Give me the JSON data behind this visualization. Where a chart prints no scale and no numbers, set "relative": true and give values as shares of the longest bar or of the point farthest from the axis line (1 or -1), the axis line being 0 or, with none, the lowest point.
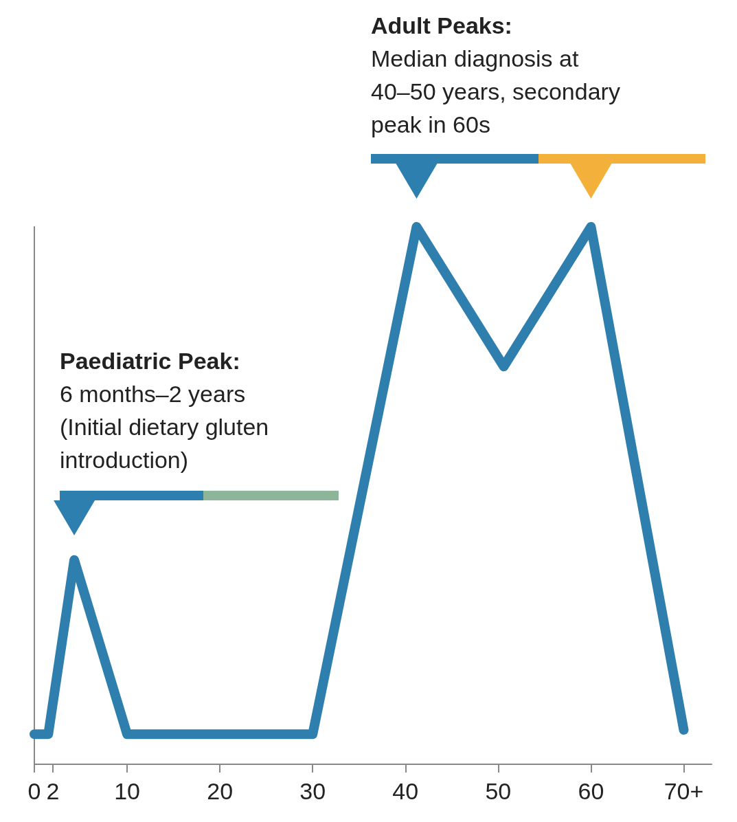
{
  "chart_data": {
    "type": "line",
    "relative": true,
    "x": [
      0,
      1.5,
      4.3,
      10,
      19.7,
      30,
      41.2,
      50.6,
      60,
      70
    ],
    "series": [
      {
        "color": "#2f7fae",
        "values": [
          0.056,
          0.056,
          0.38,
          0.056,
          0.056,
          0.056,
          1,
          0.74,
          1,
          0.064
        ]
      }
    ],
    "xlim": [
      0,
      73
    ],
    "xticks": [
      0,
      2,
      10,
      20,
      30,
      40,
      50,
      60,
      {
        "value": 70,
        "label": "70+"
      }
    ],
    "grid": false,
    "line_style": "solid",
    "annotations": [
      "Paediatric Peak:\n6 months–2 years\n(Initial dietary gluten\nintroduction)",
      "Adult Peaks:\nMedian diagnosis at\n40–50 years, secondary\npeak in 60s"
    ]
  }
}
